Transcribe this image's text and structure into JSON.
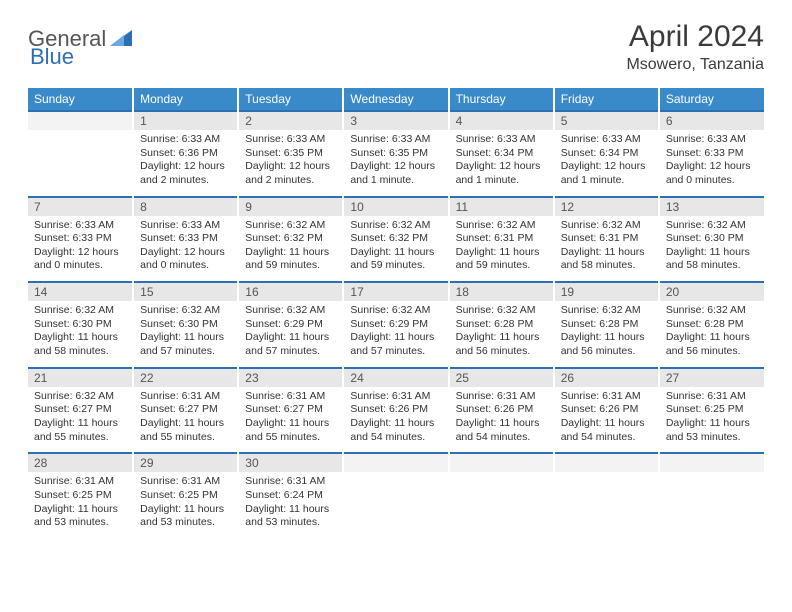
{
  "logo": {
    "general": "General",
    "blue": "Blue"
  },
  "title": "April 2024",
  "location": "Msowero, Tanzania",
  "colors": {
    "header_bg": "#3a8ac9",
    "header_text": "#ffffff",
    "daynum_bg": "#e7e7e7",
    "cell_border_top": "#2d6fb5",
    "logo_gray": "#555555",
    "logo_blue": "#2d6fb5",
    "text": "#333333"
  },
  "weekdays": [
    "Sunday",
    "Monday",
    "Tuesday",
    "Wednesday",
    "Thursday",
    "Friday",
    "Saturday"
  ],
  "weeks": [
    [
      null,
      {
        "d": "1",
        "sr": "6:33 AM",
        "ss": "6:36 PM",
        "dl": "12 hours and 2 minutes."
      },
      {
        "d": "2",
        "sr": "6:33 AM",
        "ss": "6:35 PM",
        "dl": "12 hours and 2 minutes."
      },
      {
        "d": "3",
        "sr": "6:33 AM",
        "ss": "6:35 PM",
        "dl": "12 hours and 1 minute."
      },
      {
        "d": "4",
        "sr": "6:33 AM",
        "ss": "6:34 PM",
        "dl": "12 hours and 1 minute."
      },
      {
        "d": "5",
        "sr": "6:33 AM",
        "ss": "6:34 PM",
        "dl": "12 hours and 1 minute."
      },
      {
        "d": "6",
        "sr": "6:33 AM",
        "ss": "6:33 PM",
        "dl": "12 hours and 0 minutes."
      }
    ],
    [
      {
        "d": "7",
        "sr": "6:33 AM",
        "ss": "6:33 PM",
        "dl": "12 hours and 0 minutes."
      },
      {
        "d": "8",
        "sr": "6:33 AM",
        "ss": "6:33 PM",
        "dl": "12 hours and 0 minutes."
      },
      {
        "d": "9",
        "sr": "6:32 AM",
        "ss": "6:32 PM",
        "dl": "11 hours and 59 minutes."
      },
      {
        "d": "10",
        "sr": "6:32 AM",
        "ss": "6:32 PM",
        "dl": "11 hours and 59 minutes."
      },
      {
        "d": "11",
        "sr": "6:32 AM",
        "ss": "6:31 PM",
        "dl": "11 hours and 59 minutes."
      },
      {
        "d": "12",
        "sr": "6:32 AM",
        "ss": "6:31 PM",
        "dl": "11 hours and 58 minutes."
      },
      {
        "d": "13",
        "sr": "6:32 AM",
        "ss": "6:30 PM",
        "dl": "11 hours and 58 minutes."
      }
    ],
    [
      {
        "d": "14",
        "sr": "6:32 AM",
        "ss": "6:30 PM",
        "dl": "11 hours and 58 minutes."
      },
      {
        "d": "15",
        "sr": "6:32 AM",
        "ss": "6:30 PM",
        "dl": "11 hours and 57 minutes."
      },
      {
        "d": "16",
        "sr": "6:32 AM",
        "ss": "6:29 PM",
        "dl": "11 hours and 57 minutes."
      },
      {
        "d": "17",
        "sr": "6:32 AM",
        "ss": "6:29 PM",
        "dl": "11 hours and 57 minutes."
      },
      {
        "d": "18",
        "sr": "6:32 AM",
        "ss": "6:28 PM",
        "dl": "11 hours and 56 minutes."
      },
      {
        "d": "19",
        "sr": "6:32 AM",
        "ss": "6:28 PM",
        "dl": "11 hours and 56 minutes."
      },
      {
        "d": "20",
        "sr": "6:32 AM",
        "ss": "6:28 PM",
        "dl": "11 hours and 56 minutes."
      }
    ],
    [
      {
        "d": "21",
        "sr": "6:32 AM",
        "ss": "6:27 PM",
        "dl": "11 hours and 55 minutes."
      },
      {
        "d": "22",
        "sr": "6:31 AM",
        "ss": "6:27 PM",
        "dl": "11 hours and 55 minutes."
      },
      {
        "d": "23",
        "sr": "6:31 AM",
        "ss": "6:27 PM",
        "dl": "11 hours and 55 minutes."
      },
      {
        "d": "24",
        "sr": "6:31 AM",
        "ss": "6:26 PM",
        "dl": "11 hours and 54 minutes."
      },
      {
        "d": "25",
        "sr": "6:31 AM",
        "ss": "6:26 PM",
        "dl": "11 hours and 54 minutes."
      },
      {
        "d": "26",
        "sr": "6:31 AM",
        "ss": "6:26 PM",
        "dl": "11 hours and 54 minutes."
      },
      {
        "d": "27",
        "sr": "6:31 AM",
        "ss": "6:25 PM",
        "dl": "11 hours and 53 minutes."
      }
    ],
    [
      {
        "d": "28",
        "sr": "6:31 AM",
        "ss": "6:25 PM",
        "dl": "11 hours and 53 minutes."
      },
      {
        "d": "29",
        "sr": "6:31 AM",
        "ss": "6:25 PM",
        "dl": "11 hours and 53 minutes."
      },
      {
        "d": "30",
        "sr": "6:31 AM",
        "ss": "6:24 PM",
        "dl": "11 hours and 53 minutes."
      },
      null,
      null,
      null,
      null
    ]
  ],
  "labels": {
    "sunrise": "Sunrise:",
    "sunset": "Sunset:",
    "daylight": "Daylight:"
  }
}
